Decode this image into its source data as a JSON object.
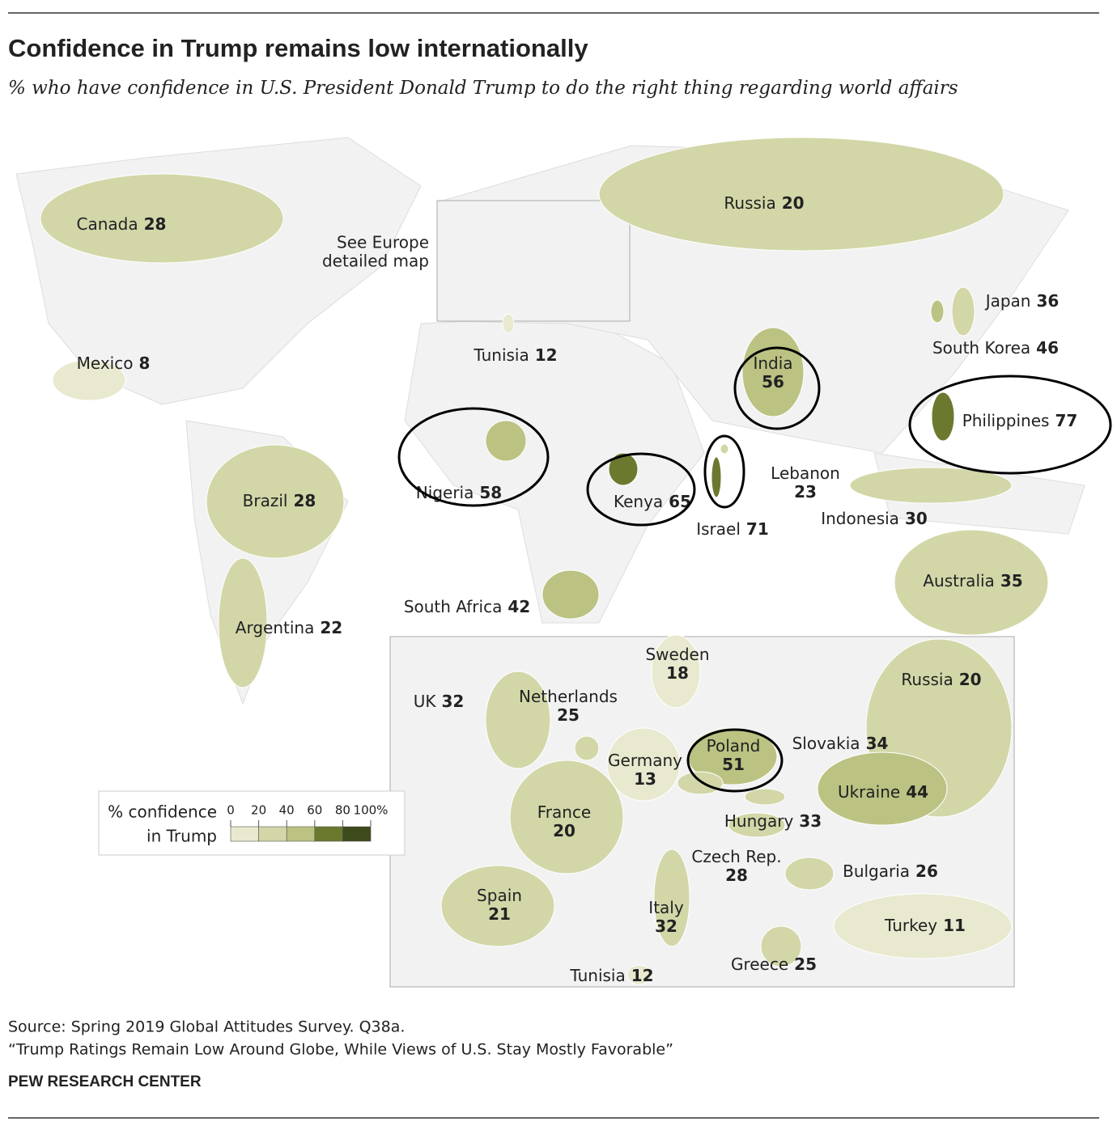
{
  "title": "Confidence in Trump remains low internationally",
  "subtitle": "% who have confidence in U.S. President Donald Trump to do the right thing regarding world affairs",
  "chart_data": {
    "type": "choropleth",
    "annotation": [
      "See Europe",
      "detailed map"
    ],
    "legend": {
      "title": [
        "% confidence",
        "in Trump"
      ],
      "ticks": [
        0,
        20,
        40,
        60,
        80,
        {
          "value": 100,
          "label": "100%"
        }
      ],
      "colors": [
        "#e8e9cf",
        "#d3d7a8",
        "#bcc282",
        "#6b792f",
        "#3d4a1b"
      ]
    },
    "countries": [
      {
        "name": "Canada",
        "value": 28
      },
      {
        "name": "Mexico",
        "value": 8
      },
      {
        "name": "Brazil",
        "value": 28
      },
      {
        "name": "Argentina",
        "value": 22
      },
      {
        "name": "Russia",
        "value": 20
      },
      {
        "name": "Japan",
        "value": 36
      },
      {
        "name": "South Korea",
        "value": 46
      },
      {
        "name": "India",
        "value": 56
      },
      {
        "name": "Philippines",
        "value": 77
      },
      {
        "name": "Indonesia",
        "value": 30
      },
      {
        "name": "Australia",
        "value": 35
      },
      {
        "name": "South Africa",
        "value": 42
      },
      {
        "name": "Nigeria",
        "value": 58
      },
      {
        "name": "Kenya",
        "value": 65
      },
      {
        "name": "Israel",
        "value": 71
      },
      {
        "name": "Lebanon",
        "value": 23
      },
      {
        "name": "Tunisia",
        "value": 12
      }
    ],
    "europe_inset": [
      {
        "name": "UK",
        "value": 32
      },
      {
        "name": "Sweden",
        "value": 18
      },
      {
        "name": "Netherlands",
        "value": 25
      },
      {
        "name": "Germany",
        "value": 13
      },
      {
        "name": "Poland",
        "value": 51
      },
      {
        "name": "Slovakia",
        "value": 34
      },
      {
        "name": "Russia",
        "value": 20
      },
      {
        "name": "Ukraine",
        "value": 44
      },
      {
        "name": "France",
        "value": 20
      },
      {
        "name": "Hungary",
        "value": 33
      },
      {
        "name": "Czech Rep.",
        "value": 28
      },
      {
        "name": "Bulgaria",
        "value": 26
      },
      {
        "name": "Spain",
        "value": 21
      },
      {
        "name": "Italy",
        "value": 32
      },
      {
        "name": "Greece",
        "value": 25
      },
      {
        "name": "Turkey",
        "value": 11
      },
      {
        "name": "Tunisia",
        "value": 12
      }
    ]
  },
  "source": "Source: Spring 2019 Global Attitudes Survey. Q38a.",
  "report": "“Trump Ratings Remain Low Around Globe, While Views of U.S. Stay Mostly Favorable”",
  "brand": "PEW RESEARCH CENTER"
}
